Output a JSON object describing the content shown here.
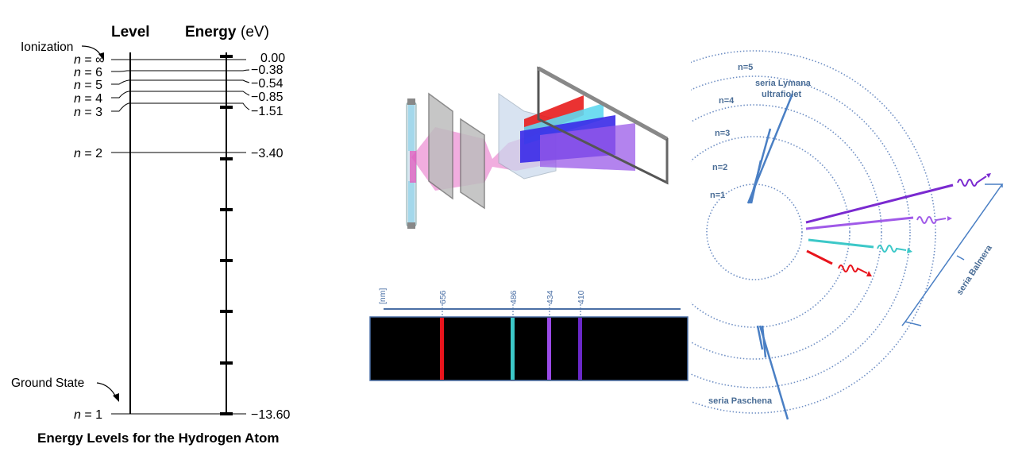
{
  "energy_diagram": {
    "level_header": "Level",
    "energy_header": "Energy",
    "energy_unit": "(eV)",
    "ionization_label": "Ionization",
    "ground_state_label": "Ground State",
    "caption": "Energy Levels for the Hydrogen Atom",
    "levels": [
      {
        "n": "∞",
        "energy": "0.00"
      },
      {
        "n": "6",
        "energy": "−0.38"
      },
      {
        "n": "5",
        "energy": "−0.54"
      },
      {
        "n": "4",
        "energy": "−0.85"
      },
      {
        "n": "3",
        "energy": "−1.51"
      },
      {
        "n": "2",
        "energy": "−3.40"
      },
      {
        "n": "1",
        "energy": "−13.60"
      }
    ]
  },
  "spectrum": {
    "unit_label": "[nm]",
    "lines": [
      {
        "wavelength": "656",
        "color": "#e8141c"
      },
      {
        "wavelength": "486",
        "color": "#3cc8c8"
      },
      {
        "wavelength": "434",
        "color": "#9a4ae6"
      },
      {
        "wavelength": "410",
        "color": "#6a28c8"
      }
    ]
  },
  "bohr_model": {
    "orbits": [
      "n=1",
      "n=2",
      "n=3",
      "n=4",
      "n=5"
    ],
    "lyman_label": "seria Lymana",
    "ultraviolet_label": "ultrafiolet",
    "balmer_label": "seria Balmera",
    "paschen_label": "seria Paschena",
    "colors": {
      "orbit": "#6f8fc4",
      "lyman": "#4a7fc4",
      "balmer_violet": "#7a2ad0",
      "balmer_purple": "#a05ae8",
      "balmer_cyan": "#3cc8c8",
      "balmer_red": "#e8141c"
    }
  }
}
